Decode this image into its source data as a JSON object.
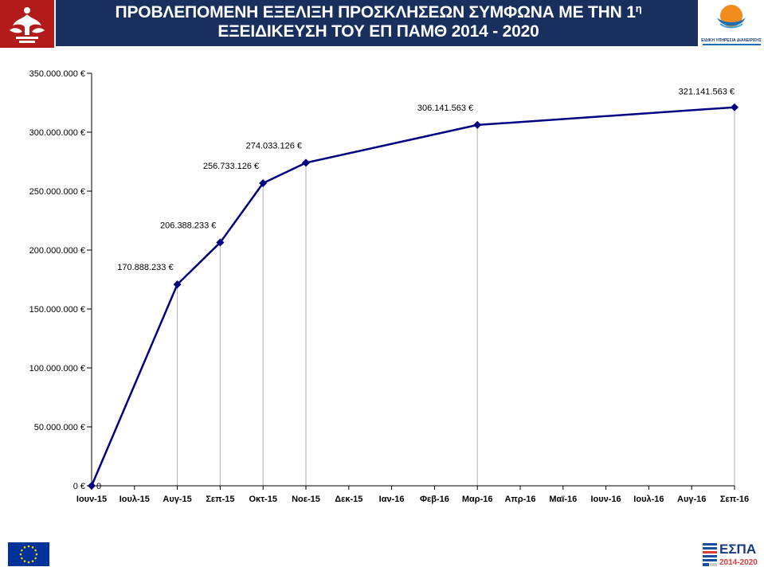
{
  "header": {
    "title_line1": "ΠΡΟΒΛΕΠΟΜΕΝΗ ΕΞΕΛΙΞΗ ΠΡΟΣΚΛΗΣΕΩΝ ΣΥΜΦΩΝΑ ΜΕ ΤΗΝ 1",
    "title_sup": "η",
    "title_line2": "ΕΞΕΙΔΙΚΕΥΣΗ ΤΟΥ ΕΠ ΠΑΜΘ 2014 - 2020",
    "right_logo_caption": "ΕΙΔΙΚΗ ΥΠΗΡΕΣΙΑ ΔΙΑΧΕΙΡΙΣΗΣ",
    "band_color": "#19305f"
  },
  "footer": {
    "espa_label": "ΕΣΠΑ",
    "espa_years": "2014-2020"
  },
  "chart_data": {
    "type": "line",
    "categories": [
      "Ιουν-15",
      "Ιουλ-15",
      "Αυγ-15",
      "Σεπ-15",
      "Οκτ-15",
      "Νοε-15",
      "Δεκ-15",
      "Ιαν-16",
      "Φεβ-16",
      "Μαρ-16",
      "Απρ-16",
      "Μαϊ-16",
      "Ιουν-16",
      "Ιουλ-16",
      "Αυγ-16",
      "Σεπ-16"
    ],
    "points": [
      {
        "category": "Ιουν-15",
        "value": 0,
        "label": "0"
      },
      {
        "category": "Αυγ-15",
        "value": 170888233,
        "label": "170.888.233 €"
      },
      {
        "category": "Σεπ-15",
        "value": 206388233,
        "label": "206.388.233 €"
      },
      {
        "category": "Οκτ-15",
        "value": 256733126,
        "label": "256.733.126 €"
      },
      {
        "category": "Νοε-15",
        "value": 274033126,
        "label": "274.033.126 €"
      },
      {
        "category": "Μαρ-16",
        "value": 306141563,
        "label": "306.141.563 €"
      },
      {
        "category": "Σεπ-16",
        "value": 321141563,
        "label": "321.141.563 €"
      }
    ],
    "y_ticks": [
      0,
      50000000,
      100000000,
      150000000,
      200000000,
      250000000,
      300000000,
      350000000
    ],
    "y_tick_labels": [
      "0 €",
      "50.000.000 €",
      "100.000.000 €",
      "150.000.000 €",
      "200.000.000 €",
      "250.000.000 €",
      "300.000.000 €",
      "350.000.000 €"
    ],
    "ylim": [
      0,
      350000000
    ],
    "drop_lines": true,
    "grid": false,
    "line_color": "#000080",
    "drop_line_color": "#b0b0b0"
  }
}
